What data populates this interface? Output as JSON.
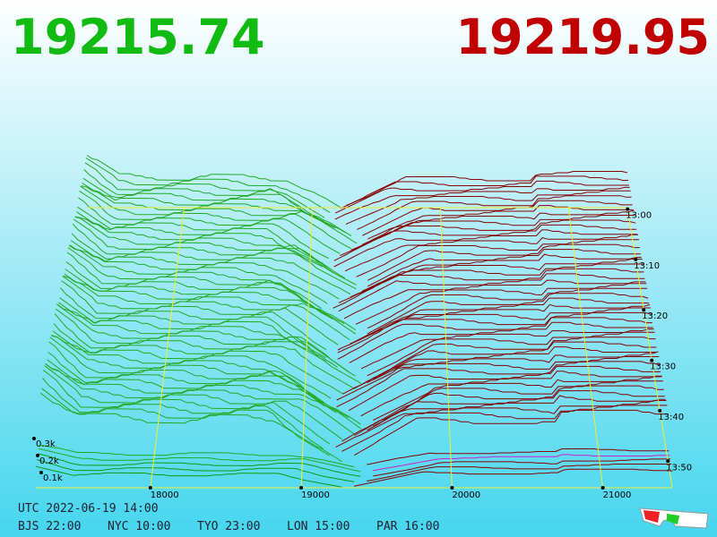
{
  "header": {
    "bid": "19215.74",
    "ask": "19219.95"
  },
  "price_axis": [
    "18000",
    "19000",
    "20000",
    "21000"
  ],
  "time_axis": [
    "13:00",
    "13:10",
    "13:20",
    "13:30",
    "13:40",
    "13:50"
  ],
  "size_axis": [
    "0.3k",
    "0.2k",
    "0.1k"
  ],
  "footer": {
    "utc": "UTC 2022-06-19 14:00",
    "zones": [
      "BJS 22:00",
      "NYC 10:00",
      "TYO 23:00",
      "LON 15:00",
      "PAR 16:00"
    ]
  }
}
